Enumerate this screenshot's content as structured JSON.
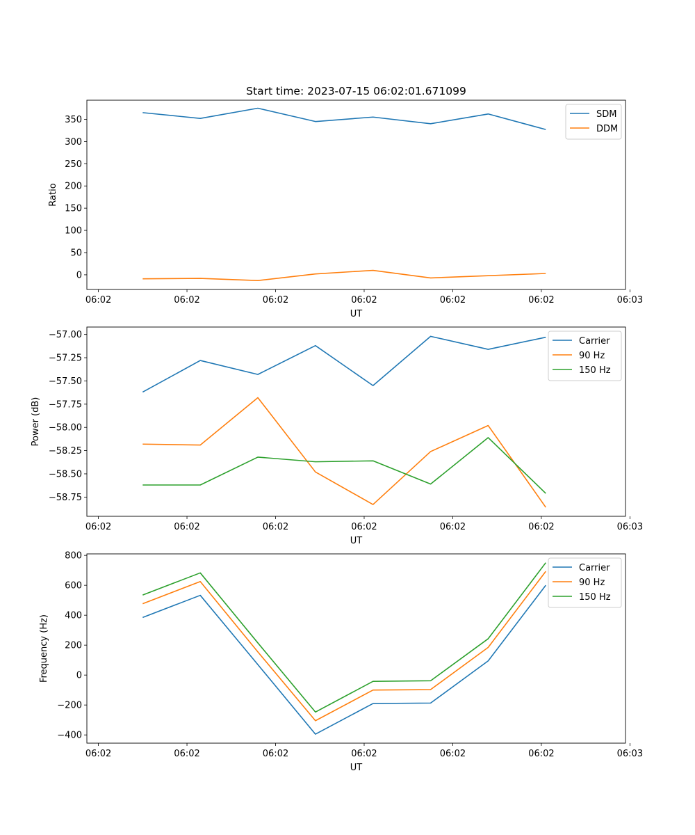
{
  "chart_data": [
    {
      "type": "line",
      "title": "Start time: 2023-07-15 06:02:01.671099",
      "xlabel": "UT",
      "ylabel": "Ratio",
      "x": [
        0.5,
        1.15,
        1.8,
        2.45,
        3.1,
        3.75,
        4.4,
        5.05
      ],
      "xlim": [
        -0.13,
        5.95
      ],
      "xticks": [
        0,
        1,
        2,
        3,
        4,
        5,
        6
      ],
      "xtick_labels": [
        "06:02",
        "06:02",
        "06:02",
        "06:02",
        "06:02",
        "06:02",
        "06:03"
      ],
      "ylim": [
        -33,
        393
      ],
      "yticks": [
        0,
        50,
        100,
        150,
        200,
        250,
        300,
        350
      ],
      "ytick_labels": [
        "0",
        "50",
        "100",
        "150",
        "200",
        "250",
        "300",
        "350"
      ],
      "legend_position": "top-right",
      "series": [
        {
          "name": "SDM",
          "color": "#1f77b4",
          "values": [
            365,
            352,
            375,
            345,
            355,
            340,
            362,
            327
          ]
        },
        {
          "name": "DDM",
          "color": "#ff7f0e",
          "values": [
            -9,
            -8,
            -13,
            2,
            10,
            -7,
            -2,
            3
          ]
        }
      ]
    },
    {
      "type": "line",
      "title": "",
      "xlabel": "UT",
      "ylabel": "Power (dB)",
      "x": [
        0.5,
        1.15,
        1.8,
        2.45,
        3.1,
        3.75,
        4.4,
        5.05
      ],
      "xlim": [
        -0.13,
        5.95
      ],
      "xticks": [
        0,
        1,
        2,
        3,
        4,
        5,
        6
      ],
      "xtick_labels": [
        "06:02",
        "06:02",
        "06:02",
        "06:02",
        "06:02",
        "06:02",
        "06:03"
      ],
      "ylim": [
        -58.957,
        -56.92
      ],
      "yticks": [
        -58.75,
        -58.5,
        -58.25,
        -58.0,
        -57.75,
        -57.5,
        -57.25,
        -57.0
      ],
      "ytick_labels": [
        "−58.75",
        "−58.50",
        "−58.25",
        "−58.00",
        "−57.75",
        "−57.50",
        "−57.25",
        "−57.00"
      ],
      "legend_position": "top-right",
      "series": [
        {
          "name": "Carrier",
          "color": "#1f77b4",
          "values": [
            -57.62,
            -57.28,
            -57.43,
            -57.12,
            -57.55,
            -57.02,
            -57.16,
            -57.03
          ]
        },
        {
          "name": "90 Hz",
          "color": "#ff7f0e",
          "values": [
            -58.18,
            -58.19,
            -57.68,
            -58.48,
            -58.83,
            -58.26,
            -57.98,
            -58.86
          ]
        },
        {
          "name": "150 Hz",
          "color": "#2ca02c",
          "values": [
            -58.62,
            -58.62,
            -58.32,
            -58.37,
            -58.36,
            -58.61,
            -58.11,
            -58.71
          ]
        }
      ]
    },
    {
      "type": "line",
      "title": "",
      "xlabel": "UT",
      "ylabel": "Frequency (Hz)",
      "x": [
        0.5,
        1.15,
        1.8,
        2.45,
        3.1,
        3.75,
        4.4,
        5.05
      ],
      "xlim": [
        -0.13,
        5.95
      ],
      "xticks": [
        0,
        1,
        2,
        3,
        4,
        5,
        6
      ],
      "xtick_labels": [
        "06:02",
        "06:02",
        "06:02",
        "06:02",
        "06:02",
        "06:02",
        "06:03"
      ],
      "ylim": [
        -455,
        810
      ],
      "yticks": [
        -400,
        -200,
        0,
        200,
        400,
        600,
        800
      ],
      "ytick_labels": [
        "−400",
        "−200",
        "0",
        "200",
        "400",
        "600",
        "800"
      ],
      "legend_position": "top-right",
      "series": [
        {
          "name": "Carrier",
          "color": "#1f77b4",
          "values": [
            385,
            533,
            70,
            -395,
            -190,
            -187,
            95,
            600
          ]
        },
        {
          "name": "90 Hz",
          "color": "#ff7f0e",
          "values": [
            477,
            625,
            155,
            -305,
            -100,
            -97,
            185,
            693
          ]
        },
        {
          "name": "150 Hz",
          "color": "#2ca02c",
          "values": [
            535,
            683,
            215,
            -247,
            -42,
            -38,
            243,
            751
          ]
        }
      ]
    }
  ]
}
